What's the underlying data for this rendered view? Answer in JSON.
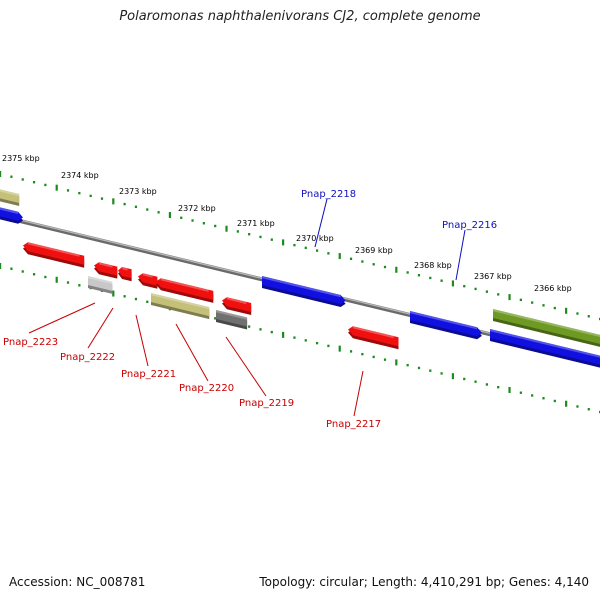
{
  "title": "Polaromonas naphthalenivorans CJ2, complete genome",
  "footer": {
    "accession": "Accession: NC_008781",
    "stats": "Topology: circular; Length: 4,410,291 bp; Genes: 4,140"
  },
  "colors": {
    "backbone": "#8a8a8a",
    "tick": "#1d8a1d",
    "top_labels": "#1010c0",
    "bottom_labels": "#c80000",
    "red_gene": "#f01010",
    "blue_gene": "#1010e0",
    "tan_gene": "#c4c07a",
    "olive_gene": "#6e9a24",
    "gray_gene": "#707070",
    "light_gray_gene": "#c8c8c8"
  },
  "scale_labels": [
    "2375 kbp",
    "2374 kbp",
    "2373 kbp",
    "2372 kbp",
    "2371 kbp",
    "2370 kbp",
    "2369 kbp",
    "2368 kbp",
    "2367 kbp",
    "2366 kbp"
  ],
  "top_gene_labels": [
    {
      "text": "Pnap_2218"
    },
    {
      "text": "Pnap_2216"
    }
  ],
  "bottom_gene_labels": [
    {
      "text": "Pnap_2223"
    },
    {
      "text": "Pnap_2222"
    },
    {
      "text": "Pnap_2221"
    },
    {
      "text": "Pnap_2220"
    },
    {
      "text": "Pnap_2219"
    },
    {
      "text": "Pnap_2217"
    }
  ],
  "genes": [
    {
      "color": "tan_gene",
      "strand": "top"
    },
    {
      "color": "blue_gene",
      "strand": "top"
    },
    {
      "color": "blue_gene",
      "strand": "top"
    },
    {
      "color": "blue_gene",
      "strand": "top"
    },
    {
      "color": "olive_gene",
      "strand": "top"
    },
    {
      "color": "blue_gene",
      "strand": "bottom"
    },
    {
      "color": "red_gene",
      "strand": "bottom"
    },
    {
      "color": "red_gene",
      "strand": "bottom"
    },
    {
      "color": "red_gene",
      "strand": "bottom"
    },
    {
      "color": "red_gene",
      "strand": "bottom"
    },
    {
      "color": "red_gene",
      "strand": "bottom"
    },
    {
      "color": "red_gene",
      "strand": "bottom"
    },
    {
      "color": "light_gray_gene",
      "strand": "bottom"
    },
    {
      "color": "tan_gene",
      "strand": "bottom"
    },
    {
      "color": "gray_gene",
      "strand": "bottom"
    },
    {
      "color": "red_gene",
      "strand": "bottom"
    }
  ]
}
